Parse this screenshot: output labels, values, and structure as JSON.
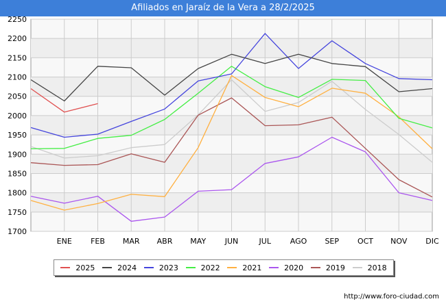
{
  "title": "Afiliados en Jaraíz de la Vera a 28/2/2025",
  "source": "http://www.foro-ciudad.com",
  "chart_data": {
    "type": "line",
    "title": "Afiliados en Jaraíz de la Vera a 28/2/2025",
    "categories": [
      "",
      "ENE",
      "FEB",
      "MAR",
      "ABR",
      "MAY",
      "JUN",
      "JUL",
      "AGO",
      "SEP",
      "OCT",
      "NOV",
      "DIC"
    ],
    "ylim": [
      1700,
      2250
    ],
    "yticks": [
      1700,
      1750,
      1800,
      1850,
      1900,
      1950,
      2000,
      2050,
      2100,
      2150,
      2200,
      2250
    ],
    "grid": true,
    "legend_position": "bottom",
    "series": [
      {
        "name": "2025",
        "color": "#e05050",
        "values": [
          2070,
          2009,
          2031,
          null,
          null,
          null,
          null,
          null,
          null,
          null,
          null,
          null,
          null
        ]
      },
      {
        "name": "2024",
        "color": "#444444",
        "values": [
          2093,
          2038,
          2128,
          2124,
          2053,
          2122,
          2159,
          2135,
          2159,
          2135,
          2127,
          2062,
          2070
        ]
      },
      {
        "name": "2023",
        "color": "#4444dd",
        "values": [
          1969,
          1944,
          1952,
          1985,
          2017,
          2090,
          2108,
          2213,
          2122,
          2194,
          2135,
          2096,
          2093
        ]
      },
      {
        "name": "2022",
        "color": "#44ee44",
        "values": [
          1914,
          1915,
          1941,
          1949,
          1990,
          2058,
          2128,
          2075,
          2047,
          2094,
          2091,
          1993,
          1968
        ]
      },
      {
        "name": "2021",
        "color": "#ffb040",
        "values": [
          1780,
          1755,
          1772,
          1796,
          1790,
          1917,
          2104,
          2047,
          2023,
          2071,
          2058,
          1997,
          1914
        ]
      },
      {
        "name": "2020",
        "color": "#aa55ee",
        "values": [
          1791,
          1773,
          1791,
          1726,
          1737,
          1804,
          1808,
          1876,
          1893,
          1944,
          1906,
          1800,
          1780
        ]
      },
      {
        "name": "2019",
        "color": "#aa5555",
        "values": [
          1878,
          1871,
          1873,
          1901,
          1879,
          2001,
          2046,
          1974,
          1976,
          1996,
          1915,
          1834,
          1789
        ]
      },
      {
        "name": "2018",
        "color": "#cccccc",
        "values": [
          1920,
          1890,
          1896,
          1917,
          1925,
          2002,
          2093,
          2011,
          2034,
          2089,
          2016,
          1951,
          1879
        ]
      }
    ]
  }
}
